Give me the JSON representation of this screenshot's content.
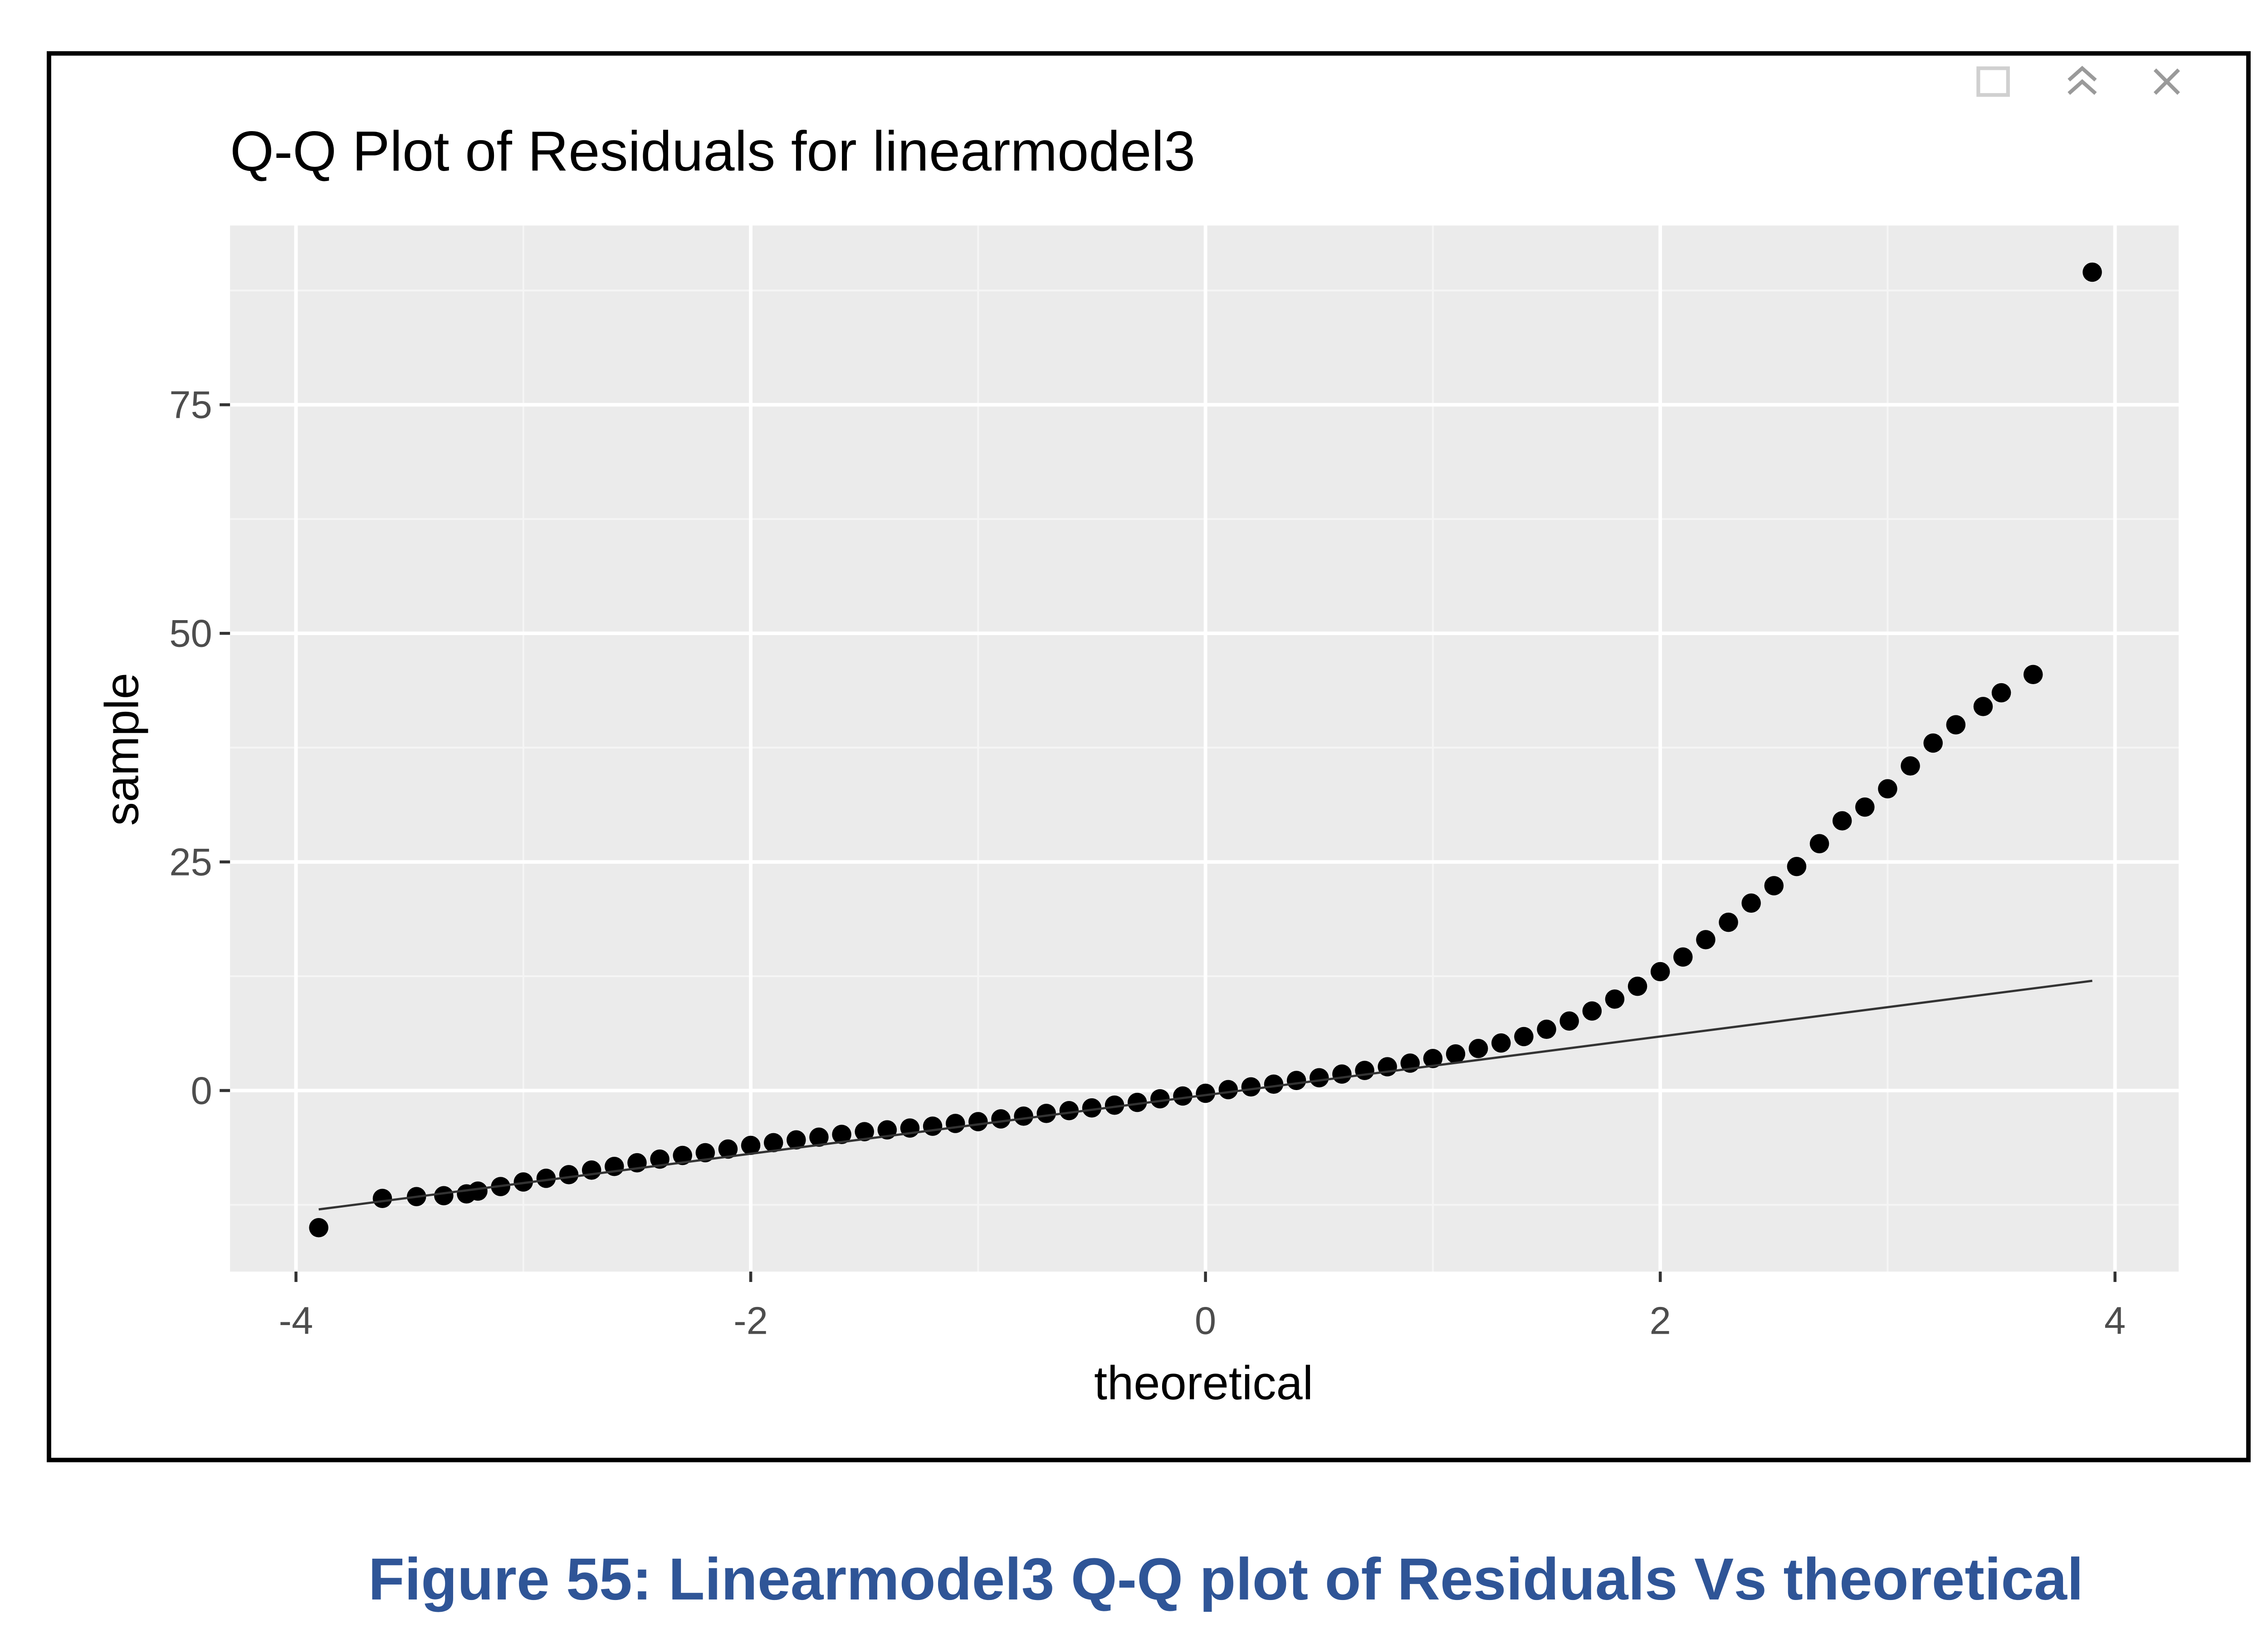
{
  "chart_data": {
    "type": "scatter",
    "title": "Q-Q Plot of Residuals for linearmodel3",
    "x_label": "theoretical",
    "y_label": "sample",
    "caption": "Figure 55: Linearmodel3 Q-Q plot of Residuals Vs theoretical",
    "x": [
      -3.9,
      -3.62,
      -3.47,
      -3.35,
      -3.25,
      -3.2,
      -3.1,
      -3.0,
      -2.9,
      -2.8,
      -2.7,
      -2.6,
      -2.5,
      -2.4,
      -2.3,
      -2.2,
      -2.1,
      -2.0,
      -1.9,
      -1.8,
      -1.7,
      -1.6,
      -1.5,
      -1.4,
      -1.3,
      -1.2,
      -1.1,
      -1.0,
      -0.9,
      -0.8,
      -0.7,
      -0.6,
      -0.5,
      -0.4,
      -0.3,
      -0.2,
      -0.1,
      0,
      0.1,
      0.2,
      0.3,
      0.4,
      0.5,
      0.6,
      0.7,
      0.8,
      0.9,
      1.0,
      1.1,
      1.2,
      1.3,
      1.4,
      1.5,
      1.6,
      1.7,
      1.8,
      1.9,
      2.0,
      2.1,
      2.2,
      2.3,
      2.4,
      2.5,
      2.6,
      2.7,
      2.8,
      2.9,
      3.0,
      3.1,
      3.2,
      3.3,
      3.42,
      3.5,
      3.64,
      3.9
    ],
    "values": [
      -15,
      -11.8,
      -11.6,
      -11.5,
      -11.3,
      -11.0,
      -10.5,
      -10.0,
      -9.6,
      -9.2,
      -8.7,
      -8.3,
      -7.9,
      -7.5,
      -7.1,
      -6.8,
      -6.4,
      -6.0,
      -5.7,
      -5.4,
      -5.1,
      -4.8,
      -4.5,
      -4.3,
      -4.1,
      -3.9,
      -3.6,
      -3.4,
      -3.1,
      -2.8,
      -2.5,
      -2.2,
      -1.9,
      -1.6,
      -1.3,
      -0.9,
      -0.6,
      -0.3,
      0.1,
      0.4,
      0.7,
      1.1,
      1.4,
      1.8,
      2.2,
      2.6,
      3.0,
      3.5,
      4.0,
      4.6,
      5.2,
      5.9,
      6.7,
      7.6,
      8.7,
      10.0,
      11.4,
      13.0,
      14.6,
      16.5,
      18.4,
      20.5,
      22.4,
      24.5,
      27.0,
      29.5,
      31.0,
      33.0,
      35.5,
      38.0,
      40.0,
      42.0,
      43.5,
      45.5,
      89.5
    ],
    "color": "#000000",
    "reference_line": {
      "x": [
        -3.9,
        3.9
      ],
      "y": [
        -13,
        12
      ],
      "color": "#333333"
    },
    "xlim": [
      -4.29,
      4.28
    ],
    "ylim": [
      -19.8,
      94.6
    ],
    "xticks": [
      -4,
      -2,
      0,
      2,
      4
    ],
    "yticks": [
      0,
      25,
      50,
      75
    ],
    "grid": true,
    "minor_grid": true
  }
}
